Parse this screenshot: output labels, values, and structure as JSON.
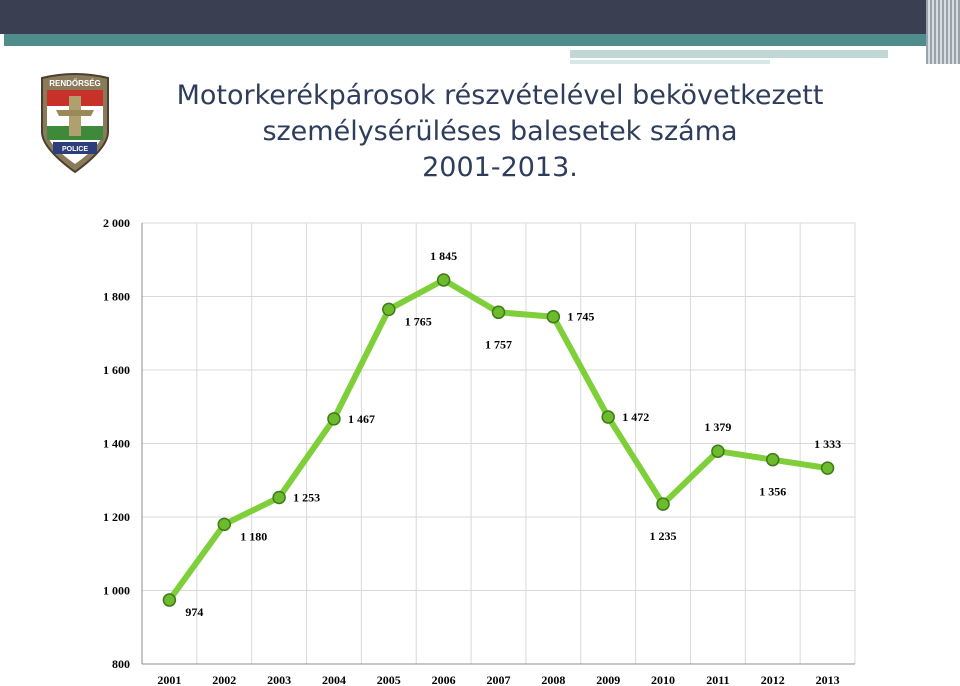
{
  "title": {
    "line1": "Motorkerékpárosok részvételével bekövetkezett",
    "line2": "személysérüléses balesetek száma",
    "line3": "2001-2013."
  },
  "logo": {
    "top_text": "RENDŐRSÉG",
    "bottom_text": "POLICE"
  },
  "chart_data": {
    "type": "line",
    "categories": [
      "2001",
      "2002",
      "2003",
      "2004",
      "2005",
      "2006",
      "2007",
      "2008",
      "2009",
      "2010",
      "2011",
      "2012",
      "2013"
    ],
    "values": [
      974,
      1180,
      1253,
      1467,
      1765,
      1845,
      1757,
      1745,
      1472,
      1235,
      1379,
      1356,
      1333
    ],
    "data_labels": [
      "974",
      "1 180",
      "1 253",
      "1 467",
      "1 765",
      "1 845",
      "1 757",
      "1 745",
      "1 472",
      "1 235",
      "1 379",
      "1 356",
      "1 333"
    ],
    "ylim": [
      800,
      2000
    ],
    "y_ticks": [
      800,
      1000,
      1200,
      1400,
      1600,
      1800,
      2000
    ],
    "y_tick_labels": [
      "800",
      "1 000",
      "1 200",
      "1 400",
      "1 600",
      "1 800",
      "2 000"
    ],
    "grid": true,
    "line_color": "#7fcf3a",
    "marker_color": "#6cbb2c",
    "xlabel": "",
    "ylabel": ""
  }
}
